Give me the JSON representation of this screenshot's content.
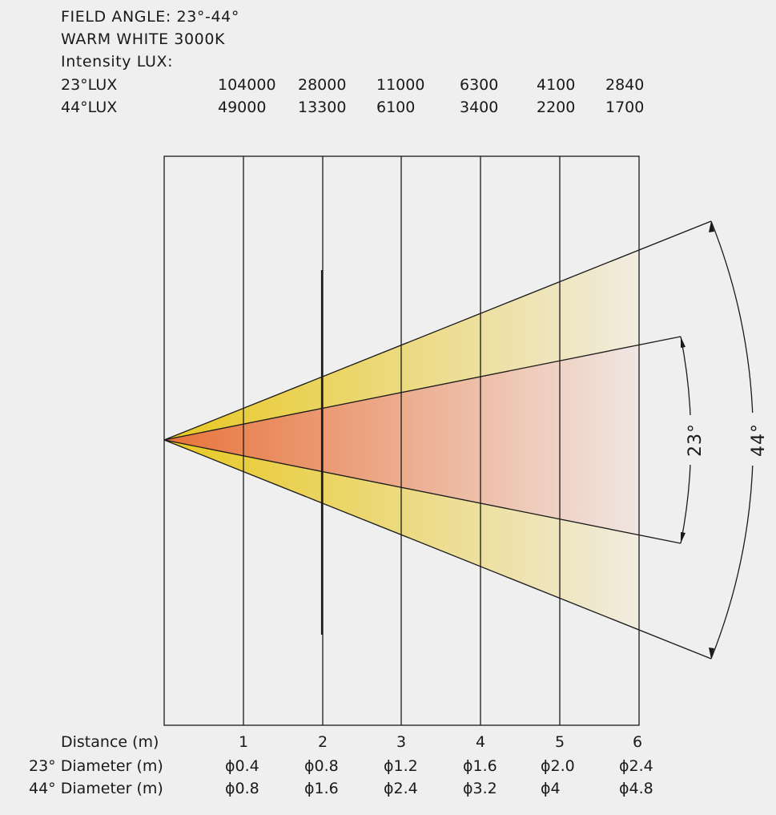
{
  "header": {
    "field_angle": "FIELD ANGLE: 23°-44°",
    "color_temp": "WARM WHITE 3000K",
    "intensity_label": "Intensity LUX:"
  },
  "lux_table": {
    "rows": [
      {
        "label": "23°LUX",
        "values": [
          "104000",
          "28000",
          "11000",
          "6300",
          "4100",
          "2840"
        ]
      },
      {
        "label": "44°LUX",
        "values": [
          "49000",
          "13300",
          "6100",
          "3400",
          "2200",
          "1700"
        ]
      }
    ]
  },
  "beam": {
    "outer_angle_label": "44°",
    "inner_angle_label": "23°",
    "colors": {
      "outer_start": "#e8c820",
      "outer_end": "#f0ece0",
      "inner_start": "#e8733a",
      "inner_end": "#f0e6e2"
    }
  },
  "footer": {
    "distance_label": "Distance (m)",
    "distances": [
      "1",
      "2",
      "3",
      "4",
      "5",
      "6"
    ],
    "diam23_label": "23° Diameter (m)",
    "diam23_values": [
      "ϕ0.4",
      "ϕ0.8",
      "ϕ1.2",
      "ϕ1.6",
      "ϕ2.0",
      "ϕ2.4"
    ],
    "diam44_label": "44° Diameter (m)",
    "diam44_values": [
      "ϕ0.8",
      "ϕ1.6",
      "ϕ2.4",
      "ϕ3.2",
      "ϕ4",
      "ϕ4.8"
    ]
  }
}
